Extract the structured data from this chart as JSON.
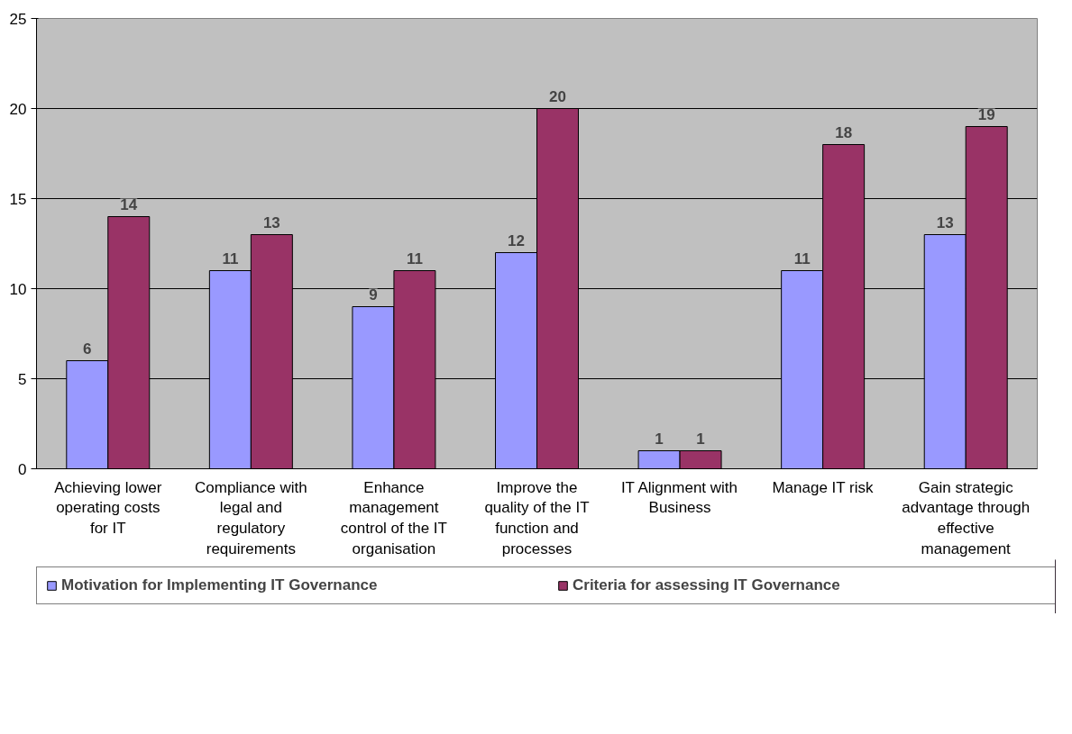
{
  "chart_data": {
    "type": "bar",
    "categories": [
      "Achieving lower operating costs for IT",
      "Compliance with legal and regulatory requirements",
      "Enhance management control of the IT organisation",
      "Improve the quality of the IT function and processes",
      "IT Alignment with Business",
      "Manage IT risk",
      "Gain strategic advantage through effective management"
    ],
    "series": [
      {
        "name": "Motivation for Implementing IT Governance",
        "color": "#9999ff",
        "values": [
          6,
          11,
          9,
          12,
          1,
          11,
          13
        ]
      },
      {
        "name": "Criteria for assessing IT Governance",
        "color": "#993366",
        "values": [
          14,
          13,
          11,
          20,
          1,
          18,
          19
        ]
      }
    ],
    "ylim": [
      0,
      25
    ],
    "yticks": [
      0,
      5,
      10,
      15,
      20,
      25
    ],
    "grid": "y",
    "legend": "bottom",
    "data_labels": true
  }
}
